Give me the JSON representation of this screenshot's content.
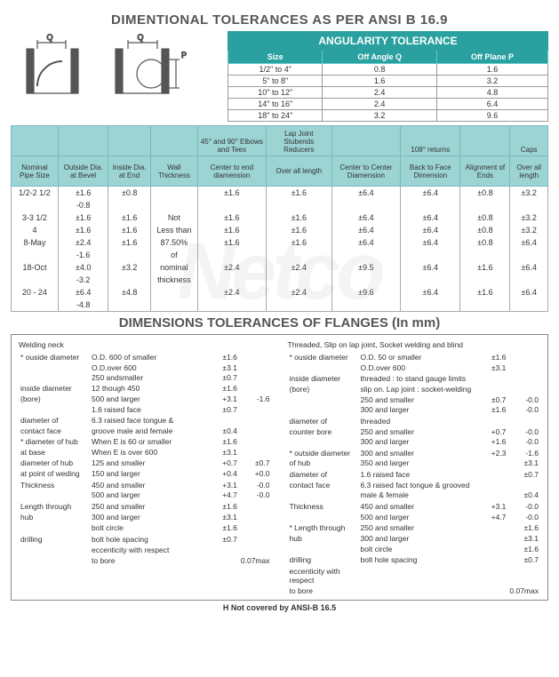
{
  "title1": "DIMENTIONAL TOLERANCES AS PER ANSI B 16.9",
  "title2": "DIMENSIONS TOLERANCES OF FLANGES (In mm)",
  "watermark": "Netco",
  "footnote": "H Not covered by ANSI-B 16.5",
  "diagram": {
    "label_q": "Q",
    "label_p": "P"
  },
  "ang": {
    "title": "ANGULARITY TOLERANCE",
    "headers": [
      "Size",
      "Off Angle Q",
      "Off Plane P"
    ],
    "rows": [
      [
        "1/2\" to 4\"",
        "0.8",
        "1.6"
      ],
      [
        "5\" to 8\"",
        "1.6",
        "3.2"
      ],
      [
        "10\" to 12\"",
        "2.4",
        "4.8"
      ],
      [
        "14\" to 16\"",
        "2.4",
        "6.4"
      ],
      [
        "18\" to 24\"",
        "3.2",
        "9.6"
      ]
    ]
  },
  "main": {
    "group": [
      "",
      "",
      "",
      "",
      "45° and 90° Elbows and Tees",
      "Lap Joint Stubends Reducers",
      "",
      "108° returns",
      "",
      "Caps"
    ],
    "headers": [
      "Nominal Pipe Size",
      "Outside Dia. at Bevel",
      "Inside Dia. at End",
      "Wall Thickness",
      "Center to end diamension",
      "Over all length",
      "Center to Center Diamension",
      "Back to Face Dimension",
      "Alignment of Ends",
      "Over all length"
    ],
    "rows": [
      [
        "1/2-2 1/2",
        "±1.6",
        "±0.8",
        "",
        "±1.6",
        "±1.6",
        "±6.4",
        "±6.4",
        "±0.8",
        "±3.2"
      ],
      [
        "",
        "-0.8",
        "",
        "",
        "",
        "",
        "",
        "",
        "",
        ""
      ],
      [
        "3-3 1/2",
        "±1.6",
        "±1.6",
        "Not",
        "±1.6",
        "±1.6",
        "±6.4",
        "±6.4",
        "±0.8",
        "±3.2"
      ],
      [
        "4",
        "±1.6",
        "±1.6",
        "Less than",
        "±1.6",
        "±1.6",
        "±6.4",
        "±6.4",
        "±0.8",
        "±3.2"
      ],
      [
        "8-May",
        "±2.4",
        "±1.6",
        "87.50%",
        "±1.6",
        "±1.6",
        "±6.4",
        "±6.4",
        "±0.8",
        "±6.4"
      ],
      [
        "",
        "-1.6",
        "",
        "of",
        "",
        "",
        "",
        "",
        "",
        ""
      ],
      [
        "18-Oct",
        "±4.0",
        "±3.2",
        "nominal",
        "±2.4",
        "±2.4",
        "±9.5",
        "±6.4",
        "±1.6",
        "±6.4"
      ],
      [
        "",
        "-3.2",
        "",
        "thickness",
        "",
        "",
        "",
        "",
        "",
        ""
      ],
      [
        "20 - 24",
        "±6.4",
        "±4.8",
        "",
        "±2.4",
        "±2.4",
        "±9.6",
        "±6.4",
        "±1.6",
        "±6.4"
      ],
      [
        "",
        "-4.8",
        "",
        "",
        "",
        "",
        "",
        "",
        "",
        ""
      ]
    ]
  },
  "fl_left": {
    "title": "Welding neck",
    "rows": [
      [
        "* ouside diameter",
        "O.D. 600 of smaller",
        "±1.6",
        ""
      ],
      [
        "",
        "O.D.over 600",
        "±3.1",
        ""
      ],
      [
        "",
        "250 andsmaller",
        "±0.7",
        ""
      ],
      [
        "inside diameter",
        "12 though 450",
        "±1.6",
        ""
      ],
      [
        "(bore)",
        "500 and larger",
        "+3.1",
        "-1.6"
      ],
      [
        "",
        "",
        "",
        ""
      ],
      [
        "",
        "1.6 raised face",
        "±0.7",
        ""
      ],
      [
        "diameter of",
        "6.3 raised face tongue &",
        "",
        ""
      ],
      [
        "contact face",
        "groove male and female",
        "±0.4",
        ""
      ],
      [
        "",
        "",
        "",
        ""
      ],
      [
        "* diameter of hub",
        "When E is 60 or smaller",
        "±1.6",
        ""
      ],
      [
        "at base",
        "When E is over 600",
        "±3.1",
        ""
      ],
      [
        "",
        "",
        "",
        ""
      ],
      [
        "diameter of hub",
        "125 and smaller",
        "+0.7",
        "±0.7"
      ],
      [
        "at point of weding",
        "150 and larger",
        "+0.4",
        "+0.0"
      ],
      [
        "",
        "",
        "",
        ""
      ],
      [
        "Thickness",
        "450 and smaller",
        "+3.1",
        "-0.0"
      ],
      [
        "",
        "500 and larger",
        "+4.7",
        "-0.0"
      ],
      [
        "",
        "",
        "",
        ""
      ],
      [
        "Length through",
        "250 and smaller",
        "±1.6",
        ""
      ],
      [
        "hub",
        "300 and larger",
        "±3.1",
        ""
      ],
      [
        "",
        "",
        "",
        ""
      ],
      [
        "",
        "bolt circle",
        "±1.6",
        ""
      ],
      [
        "",
        "",
        "",
        ""
      ],
      [
        "drilling",
        "bolt hole spacing",
        "±0.7",
        ""
      ],
      [
        "",
        "",
        "",
        ""
      ],
      [
        "",
        "eccenticity with respect",
        "",
        ""
      ],
      [
        "",
        "to bore",
        "",
        "0.07max"
      ]
    ]
  },
  "fl_right": {
    "title": "Threaded, Slip on lap joint, Socket welding and blind",
    "rows": [
      [
        "* ouside diameter",
        "O.D. 50 or smaller",
        "±1.6",
        ""
      ],
      [
        "",
        "O.D.over 600",
        "±3.1",
        ""
      ],
      [
        "",
        "",
        "",
        ""
      ],
      [
        "inside diameter",
        "threaded : to stand gauge limits",
        "",
        ""
      ],
      [
        "(bore)",
        "slip on. Lap joint : socket-welding",
        "",
        ""
      ],
      [
        "",
        "250 and smaller",
        "±0.7",
        "-0.0"
      ],
      [
        "",
        "300 and larger",
        "±1.6",
        "-0.0"
      ],
      [
        "",
        "",
        "",
        ""
      ],
      [
        "diameter of",
        "threaded",
        "",
        ""
      ],
      [
        "counter bore",
        "250 and smaller",
        "+0.7",
        "-0.0"
      ],
      [
        "",
        "300 and larger",
        "+1.6",
        "-0.0"
      ],
      [
        "",
        "",
        "",
        ""
      ],
      [
        "* outside diameter",
        "300 and smaller",
        "+2.3",
        "-1.6"
      ],
      [
        "of hub",
        "350 and larger",
        "",
        "±3.1"
      ],
      [
        "",
        "",
        "",
        ""
      ],
      [
        "diameter of",
        "1.6 raised face",
        "",
        "±0.7"
      ],
      [
        "contact face",
        "6.3 raised fact tongue & grooved",
        "",
        ""
      ],
      [
        "",
        "male & female",
        "",
        "±0.4"
      ],
      [
        "",
        "",
        "",
        ""
      ],
      [
        "Thickness",
        "450 and smaller",
        "+3.1",
        "-0.0"
      ],
      [
        "",
        "500 and larger",
        "+4.7",
        "-0.0"
      ],
      [
        "",
        "",
        "",
        ""
      ],
      [
        "* Length through",
        "250 and smaller",
        "",
        "±1.6"
      ],
      [
        "hub",
        "300 and larger",
        "",
        "±3.1"
      ],
      [
        "",
        "",
        "",
        ""
      ],
      [
        "",
        "bolt circle",
        "",
        "±1.6"
      ],
      [
        "drilling",
        "bolt hole spacing",
        "",
        "±0.7"
      ],
      [
        "",
        "",
        "",
        ""
      ],
      [
        "eccenticity with respect",
        "",
        "",
        ""
      ],
      [
        "to bore",
        "",
        "",
        "0.07max"
      ]
    ]
  },
  "colors": {
    "teal_dark": "#2aa0a0",
    "teal_light": "#9cd3d3",
    "border": "#888888",
    "text": "#333333"
  }
}
